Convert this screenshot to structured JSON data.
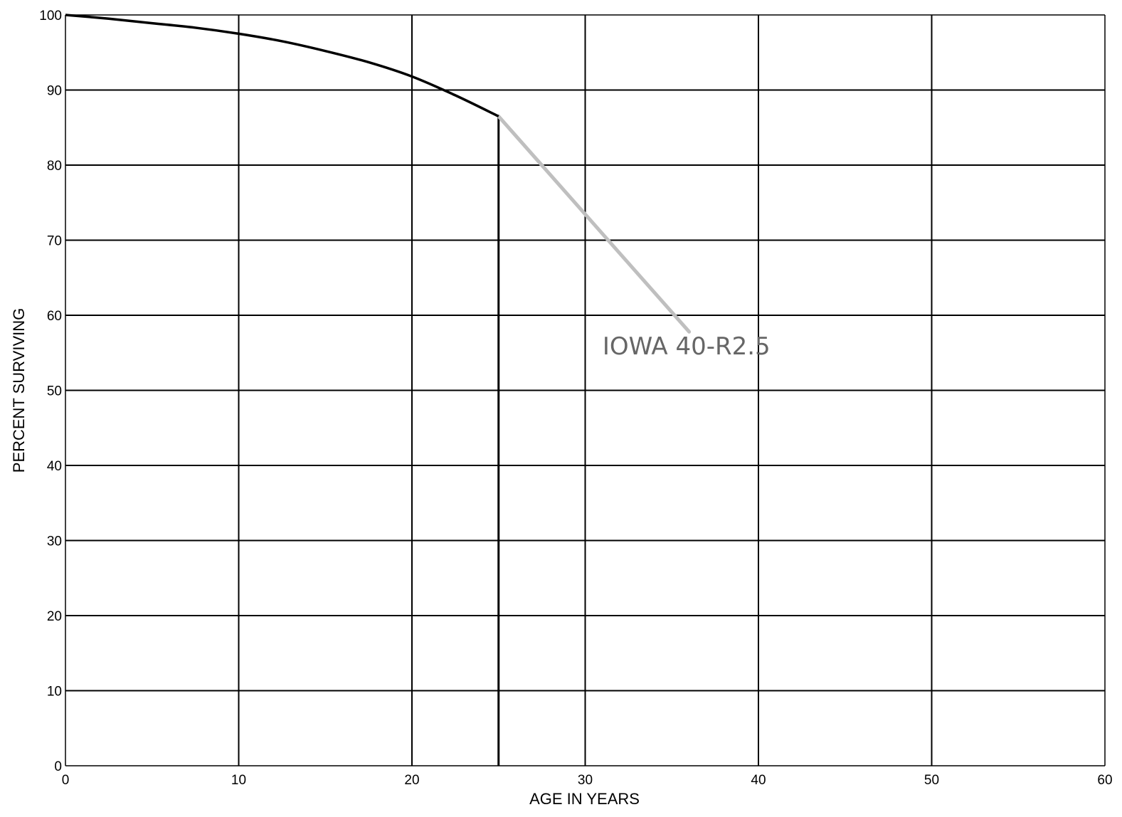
{
  "chart_data": {
    "type": "line",
    "title": "",
    "xlabel": "AGE IN YEARS",
    "ylabel": "PERCENT SURVIVING",
    "xlim": [
      0,
      60
    ],
    "ylim": [
      0,
      100
    ],
    "xticks": [
      0,
      10,
      20,
      30,
      40,
      50,
      60
    ],
    "yticks": [
      0,
      10,
      20,
      30,
      40,
      50,
      60,
      70,
      80,
      90,
      100
    ],
    "grid": true,
    "legend": "none",
    "series": [
      {
        "x": [
          0,
          2.5,
          5,
          7.5,
          10,
          12.5,
          15,
          17.5,
          20,
          22.5,
          25
        ],
        "y": [
          100,
          99.5,
          98.9,
          98.3,
          97.5,
          96.5,
          95.2,
          93.7,
          91.8,
          89.3,
          86.5
        ],
        "color": "#000000"
      }
    ],
    "vertical_lines": [
      {
        "x": 25,
        "y_from": 0,
        "y_to": 86.5,
        "color": "#000000"
      }
    ],
    "annotations": [
      {
        "text": "IOWA 40-R2.5",
        "text_x": 31,
        "text_y": 54.8,
        "pointer_from": [
          36,
          57.8
        ],
        "pointer_to": [
          25,
          86.5
        ],
        "color": "#bfbfbf",
        "text_color": "#666666"
      }
    ],
    "colors": {
      "grid": "#000000",
      "background": "#ffffff"
    }
  }
}
